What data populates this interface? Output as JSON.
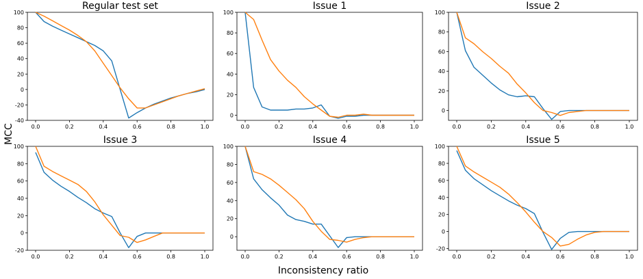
{
  "figure": {
    "ylabel": "MCC",
    "xlabel": "Inconsistency ratio"
  },
  "colors": {
    "series_a": "#1f77b4",
    "series_b": "#ff7f0e"
  },
  "chart_data": [
    {
      "type": "line",
      "title": "Regular test set",
      "xlim": [
        0,
        1
      ],
      "ylim": [
        -40,
        100
      ],
      "xticks": [
        "0.0",
        "0.2",
        "0.4",
        "0.6",
        "0.8",
        "1.0"
      ],
      "yticks": [
        "-40",
        "-20",
        "0",
        "20",
        "40",
        "60",
        "80",
        "100"
      ],
      "series": [
        {
          "color": "#1f77b4",
          "x": [
            0,
            0.05,
            0.1,
            0.15,
            0.2,
            0.25,
            0.3,
            0.35,
            0.4,
            0.45,
            0.5,
            0.55,
            0.6,
            0.65,
            0.7,
            0.75,
            0.8,
            0.85,
            0.9,
            0.95,
            1.0
          ],
          "y": [
            100,
            88,
            82,
            77,
            72,
            67,
            62,
            57,
            50,
            37,
            0,
            -37,
            -30,
            -24,
            -19,
            -15,
            -11,
            -8,
            -5,
            -3,
            0
          ]
        },
        {
          "color": "#ff7f0e",
          "x": [
            0,
            0.05,
            0.1,
            0.15,
            0.2,
            0.25,
            0.3,
            0.35,
            0.4,
            0.45,
            0.5,
            0.55,
            0.6,
            0.65,
            0.7,
            0.75,
            0.8,
            0.85,
            0.9,
            0.95,
            1.0
          ],
          "y": [
            100,
            95,
            89,
            83,
            77,
            70,
            62,
            50,
            34,
            18,
            2,
            -12,
            -24,
            -24,
            -20,
            -16,
            -12,
            -8,
            -5,
            -2,
            1
          ]
        }
      ]
    },
    {
      "type": "line",
      "title": "Issue 1",
      "xlim": [
        0,
        1
      ],
      "ylim": [
        -5,
        100
      ],
      "xticks": [
        "0.0",
        "0.2",
        "0.4",
        "0.6",
        "0.8",
        "1.0"
      ],
      "yticks": [
        "0",
        "20",
        "40",
        "60",
        "80",
        "100"
      ],
      "series": [
        {
          "color": "#1f77b4",
          "x": [
            0,
            0.05,
            0.1,
            0.15,
            0.2,
            0.25,
            0.3,
            0.35,
            0.4,
            0.45,
            0.5,
            0.55,
            0.6,
            0.65,
            0.7,
            0.75,
            0.8,
            0.85,
            0.9,
            0.95,
            1.0
          ],
          "y": [
            100,
            27,
            8,
            5,
            5,
            5,
            6,
            6,
            7,
            10,
            -1,
            -3,
            -1,
            -1,
            0,
            0,
            0,
            0,
            0,
            0,
            0
          ]
        },
        {
          "color": "#ff7f0e",
          "x": [
            0,
            0.05,
            0.1,
            0.15,
            0.2,
            0.25,
            0.3,
            0.35,
            0.4,
            0.45,
            0.5,
            0.55,
            0.6,
            0.65,
            0.7,
            0.75,
            0.8,
            0.85,
            0.9,
            0.95,
            1.0
          ],
          "y": [
            100,
            93,
            73,
            54,
            43,
            34,
            27,
            18,
            11,
            5,
            -1,
            -2,
            0,
            0,
            1,
            0,
            0,
            0,
            0,
            0,
            0
          ]
        }
      ]
    },
    {
      "type": "line",
      "title": "Issue 2",
      "xlim": [
        0,
        1
      ],
      "ylim": [
        -10,
        100
      ],
      "xticks": [
        "0.0",
        "0.2",
        "0.4",
        "0.6",
        "0.8",
        "1.0"
      ],
      "yticks": [
        "0",
        "20",
        "40",
        "60",
        "80",
        "100"
      ],
      "series": [
        {
          "color": "#1f77b4",
          "x": [
            0,
            0.05,
            0.1,
            0.15,
            0.2,
            0.25,
            0.3,
            0.35,
            0.4,
            0.45,
            0.5,
            0.55,
            0.6,
            0.65,
            0.7,
            0.75,
            0.8,
            0.85,
            0.9,
            0.95,
            1.0
          ],
          "y": [
            100,
            61,
            44,
            36,
            28,
            21,
            16,
            14,
            15,
            14,
            2,
            -9,
            -1,
            0,
            0,
            0,
            0,
            0,
            0,
            0,
            0
          ]
        },
        {
          "color": "#ff7f0e",
          "x": [
            0,
            0.05,
            0.1,
            0.15,
            0.2,
            0.25,
            0.3,
            0.35,
            0.4,
            0.45,
            0.5,
            0.55,
            0.6,
            0.65,
            0.7,
            0.75,
            0.8,
            0.85,
            0.9,
            0.95,
            1.0
          ],
          "y": [
            100,
            74,
            68,
            60,
            53,
            45,
            38,
            27,
            18,
            8,
            0,
            -2,
            -5,
            -2,
            -1,
            0,
            0,
            0,
            0,
            0,
            0
          ]
        }
      ]
    },
    {
      "type": "line",
      "title": "Issue 3",
      "xlim": [
        0,
        1
      ],
      "ylim": [
        -20,
        100
      ],
      "xticks": [
        "0.0",
        "0.2",
        "0.4",
        "0.6",
        "0.8",
        "1.0"
      ],
      "yticks": [
        "-20",
        "0",
        "20",
        "40",
        "60",
        "80",
        "100"
      ],
      "series": [
        {
          "color": "#1f77b4",
          "x": [
            0,
            0.05,
            0.1,
            0.15,
            0.2,
            0.25,
            0.3,
            0.35,
            0.4,
            0.45,
            0.5,
            0.55,
            0.6,
            0.65,
            0.7,
            0.75,
            0.8,
            0.85,
            0.9,
            0.95,
            1.0
          ],
          "y": [
            93,
            70,
            61,
            54,
            48,
            41,
            35,
            28,
            23,
            19,
            0,
            -17,
            -4,
            0,
            0,
            0,
            0,
            0,
            0,
            0,
            0
          ]
        },
        {
          "color": "#ff7f0e",
          "x": [
            0,
            0.05,
            0.1,
            0.15,
            0.2,
            0.25,
            0.3,
            0.35,
            0.4,
            0.45,
            0.5,
            0.55,
            0.6,
            0.65,
            0.7,
            0.75,
            0.8,
            0.85,
            0.9,
            0.95,
            1.0
          ],
          "y": [
            100,
            77,
            71,
            66,
            61,
            56,
            48,
            36,
            21,
            9,
            -3,
            -5,
            -11,
            -8,
            -4,
            0,
            0,
            0,
            0,
            0,
            0
          ]
        }
      ]
    },
    {
      "type": "line",
      "title": "Issue 4",
      "xlim": [
        0,
        1
      ],
      "ylim": [
        -15,
        100
      ],
      "xticks": [
        "0.0",
        "0.2",
        "0.4",
        "0.6",
        "0.8",
        "1.0"
      ],
      "yticks": [
        "0",
        "20",
        "40",
        "60",
        "80",
        "100"
      ],
      "series": [
        {
          "color": "#1f77b4",
          "x": [
            0,
            0.05,
            0.1,
            0.15,
            0.2,
            0.25,
            0.3,
            0.35,
            0.4,
            0.45,
            0.5,
            0.55,
            0.6,
            0.65,
            0.7,
            0.75,
            0.8,
            0.85,
            0.9,
            0.95,
            1.0
          ],
          "y": [
            100,
            64,
            52,
            43,
            35,
            24,
            19,
            17,
            14,
            14,
            1,
            -12,
            -1,
            0,
            0,
            0,
            0,
            0,
            0,
            0,
            0
          ]
        },
        {
          "color": "#ff7f0e",
          "x": [
            0,
            0.05,
            0.1,
            0.15,
            0.2,
            0.25,
            0.3,
            0.35,
            0.4,
            0.45,
            0.5,
            0.55,
            0.6,
            0.65,
            0.7,
            0.75,
            0.8,
            0.85,
            0.9,
            0.95,
            1.0
          ],
          "y": [
            100,
            72,
            69,
            64,
            57,
            49,
            41,
            31,
            17,
            6,
            -3,
            -4,
            -6,
            -3,
            -1,
            0,
            0,
            0,
            0,
            0,
            0
          ]
        }
      ]
    },
    {
      "type": "line",
      "title": "Issue 5",
      "xlim": [
        0,
        1
      ],
      "ylim": [
        -22,
        100
      ],
      "xticks": [
        "0.0",
        "0.2",
        "0.4",
        "0.6",
        "0.8",
        "1.0"
      ],
      "yticks": [
        "-20",
        "0",
        "20",
        "40",
        "60",
        "80",
        "100"
      ],
      "series": [
        {
          "color": "#1f77b4",
          "x": [
            0,
            0.05,
            0.1,
            0.15,
            0.2,
            0.25,
            0.3,
            0.35,
            0.4,
            0.45,
            0.5,
            0.55,
            0.6,
            0.65,
            0.7,
            0.75,
            0.8,
            0.85,
            0.9,
            0.95,
            1.0
          ],
          "y": [
            95,
            72,
            62,
            55,
            48,
            42,
            36,
            31,
            27,
            21,
            -1,
            -21,
            -8,
            -1,
            0,
            0,
            0,
            0,
            0,
            0,
            0
          ]
        },
        {
          "color": "#ff7f0e",
          "x": [
            0,
            0.05,
            0.1,
            0.15,
            0.2,
            0.25,
            0.3,
            0.35,
            0.4,
            0.45,
            0.5,
            0.55,
            0.6,
            0.65,
            0.7,
            0.75,
            0.8,
            0.85,
            0.9,
            0.95,
            1.0
          ],
          "y": [
            100,
            77,
            70,
            64,
            58,
            52,
            44,
            34,
            23,
            11,
            0,
            -7,
            -17,
            -15,
            -9,
            -4,
            -1,
            0,
            0,
            0,
            0
          ]
        }
      ]
    }
  ]
}
